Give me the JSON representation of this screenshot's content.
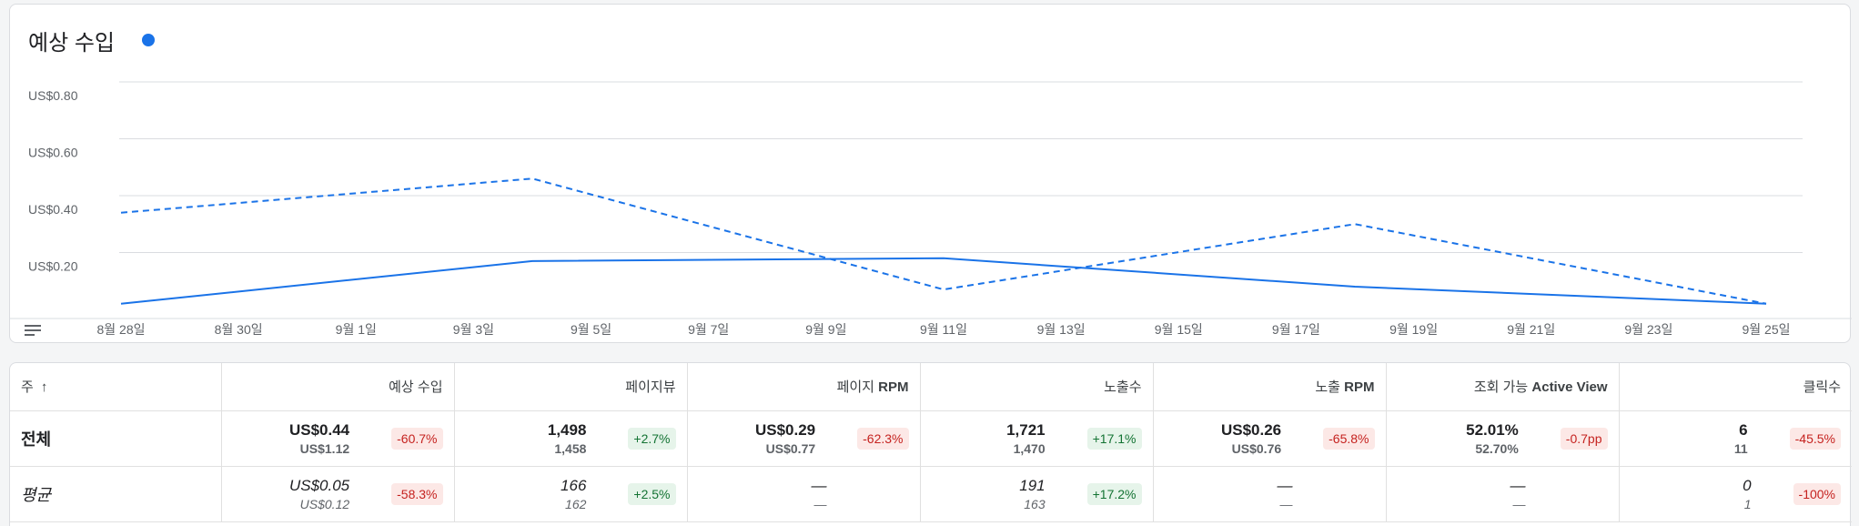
{
  "chart_data": {
    "type": "line",
    "title": "예상 수입",
    "legend_color": "#1a73e8",
    "y_ticks": [
      "US$0.20",
      "US$0.40",
      "US$0.60",
      "US$0.80"
    ],
    "ylim": [
      0,
      0.8
    ],
    "x_ticks": [
      "8월 28일",
      "8월 30일",
      "9월 1일",
      "9월 3일",
      "9월 5일",
      "9월 7일",
      "9월 9일",
      "9월 11일",
      "9월 13일",
      "9월 15일",
      "9월 17일",
      "9월 19일",
      "9월 21일",
      "9월 23일",
      "9월 25일"
    ],
    "x": [
      "8월 28일",
      "9월 4일",
      "9월 11일",
      "9월 18일",
      "9월 25일"
    ],
    "series": [
      {
        "style": "solid",
        "color": "#1a73e8",
        "values": [
          0.02,
          0.17,
          0.18,
          0.08,
          0.02
        ]
      },
      {
        "style": "dashed",
        "color": "#1a73e8",
        "values": [
          0.34,
          0.46,
          0.07,
          0.3,
          0.02
        ]
      }
    ],
    "grid": true
  },
  "table": {
    "first_header": "주",
    "headers": [
      {
        "text": "예상 수입",
        "bold": ""
      },
      {
        "text": "페이지뷰",
        "bold": ""
      },
      {
        "text": "페이지 ",
        "bold": "RPM"
      },
      {
        "text": "노출수",
        "bold": ""
      },
      {
        "text": "노출 ",
        "bold": "RPM"
      },
      {
        "text": "조회 가능 ",
        "bold": "Active View"
      },
      {
        "text": "클릭수",
        "bold": ""
      }
    ],
    "total": {
      "label": "전체",
      "cells": [
        {
          "main": "US$0.44",
          "sub": "US$1.12",
          "change": "-60.7%",
          "dir": "neg"
        },
        {
          "main": "1,498",
          "sub": "1,458",
          "change": "+2.7%",
          "dir": "pos"
        },
        {
          "main": "US$0.29",
          "sub": "US$0.77",
          "change": "-62.3%",
          "dir": "neg"
        },
        {
          "main": "1,721",
          "sub": "1,470",
          "change": "+17.1%",
          "dir": "pos"
        },
        {
          "main": "US$0.26",
          "sub": "US$0.76",
          "change": "-65.8%",
          "dir": "neg"
        },
        {
          "main": "52.01%",
          "sub": "52.70%",
          "change": "-0.7pp",
          "dir": "neg"
        },
        {
          "main": "6",
          "sub": "11",
          "change": "-45.5%",
          "dir": "neg"
        }
      ]
    },
    "average": {
      "label": "평균",
      "cells": [
        {
          "main": "US$0.05",
          "sub": "US$0.12",
          "change": "-58.3%",
          "dir": "neg"
        },
        {
          "main": "166",
          "sub": "162",
          "change": "+2.5%",
          "dir": "pos"
        },
        {
          "main": "—",
          "sub": "—",
          "change": "",
          "dir": ""
        },
        {
          "main": "191",
          "sub": "163",
          "change": "+17.2%",
          "dir": "pos"
        },
        {
          "main": "—",
          "sub": "—",
          "change": "",
          "dir": ""
        },
        {
          "main": "—",
          "sub": "—",
          "change": "",
          "dir": ""
        },
        {
          "main": "0",
          "sub": "1",
          "change": "-100%",
          "dir": "neg"
        }
      ]
    }
  }
}
